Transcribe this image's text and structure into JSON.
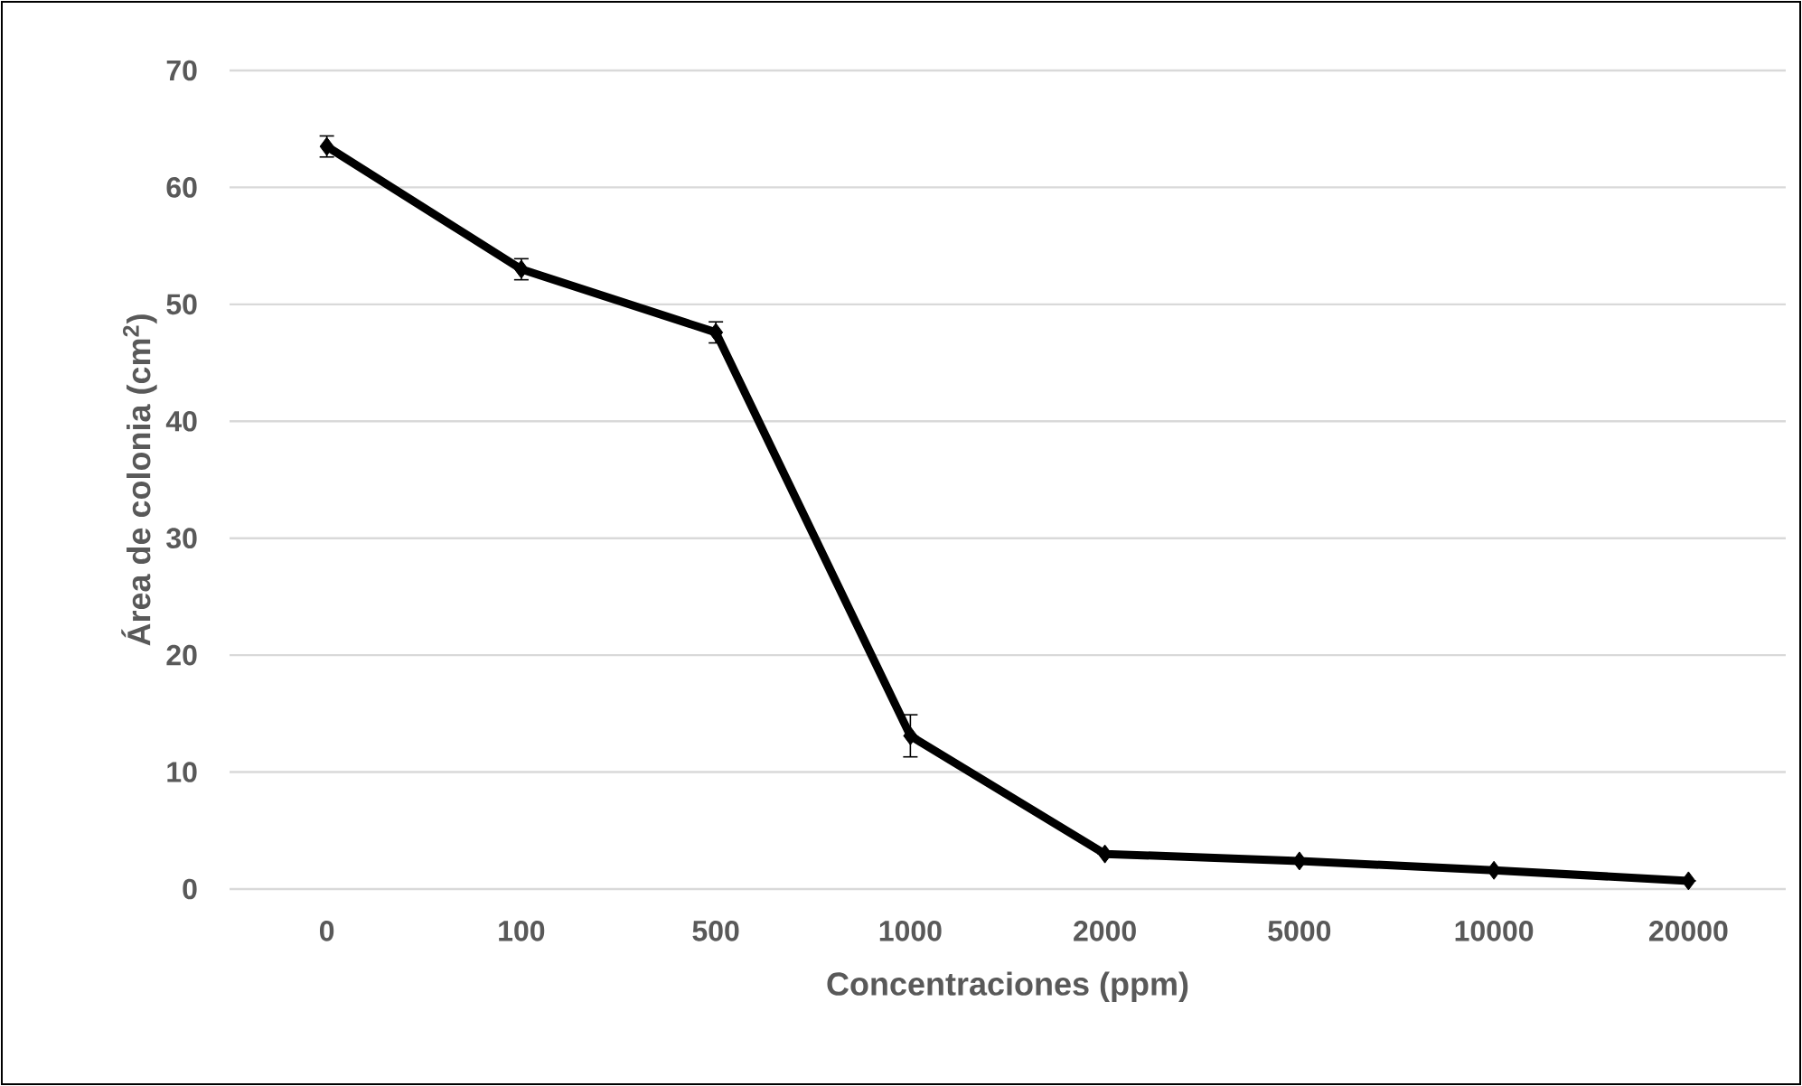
{
  "chart_data": {
    "type": "line",
    "xlabel": "Concentraciones (ppm)",
    "ylabel": "Área  de colonia (cm$^{2}$)",
    "categories": [
      "0",
      "100",
      "500",
      "1000",
      "2000",
      "5000",
      "10000",
      "20000"
    ],
    "series": [
      {
        "color": "#000000",
        "values": [
          63.5,
          53.0,
          47.6,
          13.1,
          3.0,
          2.4,
          1.6,
          0.7
        ],
        "errors": [
          0.9,
          0.9,
          0.9,
          1.8,
          null,
          null,
          null,
          null
        ]
      }
    ],
    "ylim": [
      0,
      70
    ],
    "yticks": [
      0,
      10,
      20,
      30,
      40,
      50,
      60,
      70
    ],
    "grid": "y",
    "marker": "diamond",
    "line_style": "solid"
  }
}
